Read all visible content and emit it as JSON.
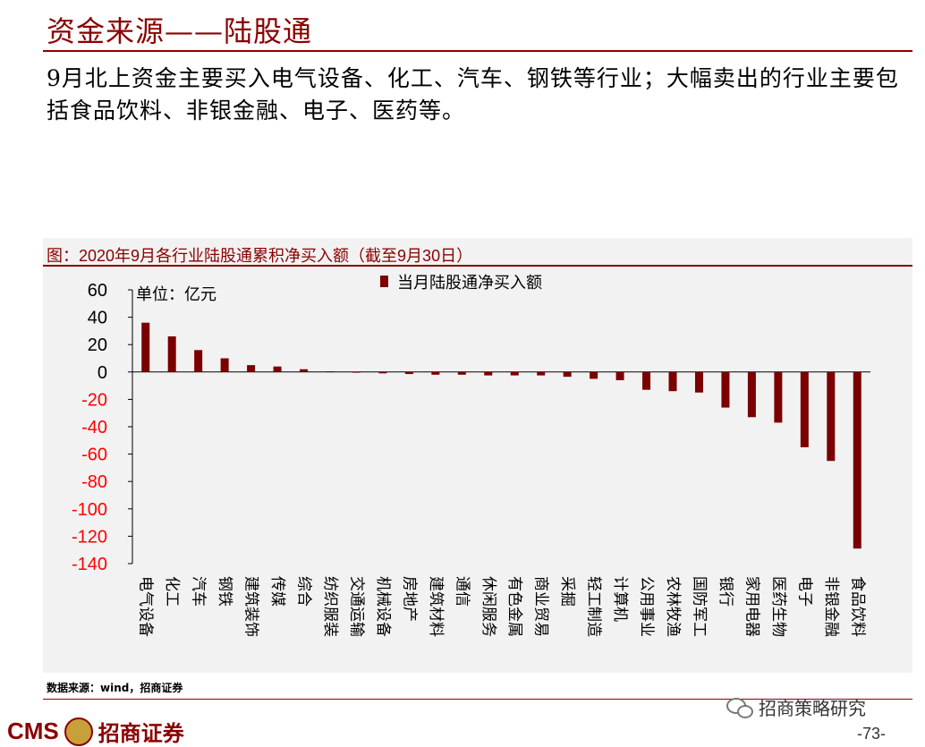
{
  "slide": {
    "title": "资金来源——陆股通",
    "intro": "9月北上资金主要买入电气设备、化工、汽车、钢铁等行业；大幅卖出的行业主要包括食品饮料、非银金融、电子、医药等。",
    "source": "数据来源：wind，招商证券",
    "brand_latin": "CMS",
    "brand_cn": "招商证券",
    "wechat": "招商策略研究",
    "page_number": "-73-"
  },
  "colors": {
    "accent": "#8b0000",
    "bar": "#7b0000",
    "negative_tick": "#ff0000",
    "panel_bg": "#f2f2f2"
  },
  "chart_data": {
    "type": "bar",
    "title": "图：2020年9月各行业陆股通累积净买入额（截至9月30日）",
    "unit_label": "单位：亿元",
    "legend_position": "top",
    "ylim": [
      -140,
      60
    ],
    "yticks": [
      60,
      40,
      20,
      0,
      -20,
      -40,
      -60,
      -80,
      -100,
      -120,
      -140
    ],
    "series": [
      {
        "name": "当月陆股通净买入额"
      }
    ],
    "categories": [
      "电气设备",
      "化工",
      "汽车",
      "钢铁",
      "建筑装饰",
      "传媒",
      "综合",
      "纺织服装",
      "交通运输",
      "机械设备",
      "房地产",
      "建筑材料",
      "通信",
      "休闲服务",
      "有色金属",
      "商业贸易",
      "采掘",
      "轻工制造",
      "计算机",
      "公用事业",
      "农林牧渔",
      "国防军工",
      "银行",
      "家用电器",
      "医药生物",
      "电子",
      "非银金融",
      "食品饮料"
    ],
    "values": [
      36,
      26,
      16,
      10,
      5,
      4,
      2,
      0.5,
      -0.5,
      -1,
      -1.5,
      -2,
      -2,
      -2.5,
      -2.5,
      -2.5,
      -3.5,
      -5,
      -6,
      -13,
      -14,
      -15,
      -26,
      -33,
      -37,
      -55,
      -65,
      -129
    ]
  }
}
